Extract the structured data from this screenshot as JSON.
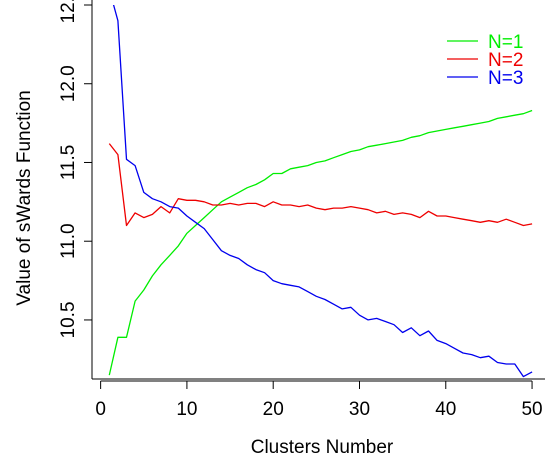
{
  "chart_data": {
    "type": "line",
    "title": "",
    "xlabel": "Clusters Number",
    "ylabel": "Value of sWards Function",
    "xlim": [
      -1,
      51.5
    ],
    "ylim": [
      10.125,
      12.5
    ],
    "x_ticks": [
      0,
      10,
      20,
      30,
      40,
      50
    ],
    "x_tick_labels": [
      "0",
      "10",
      "20",
      "30",
      "40",
      "50"
    ],
    "y_ticks": [
      10.5,
      11.0,
      11.5,
      12.0,
      12.5
    ],
    "y_tick_labels": [
      "10.5",
      "11.0",
      "11.5",
      "12.0",
      "12.5"
    ],
    "legend_position": "top-right",
    "grid": false,
    "x": [
      1,
      2,
      3,
      4,
      5,
      6,
      7,
      8,
      9,
      10,
      11,
      12,
      13,
      14,
      15,
      16,
      17,
      18,
      19,
      20,
      21,
      22,
      23,
      24,
      25,
      26,
      27,
      28,
      29,
      30,
      31,
      32,
      33,
      34,
      35,
      36,
      37,
      38,
      39,
      40,
      41,
      42,
      43,
      44,
      45,
      46,
      47,
      48,
      49,
      50
    ],
    "series": [
      {
        "name": "N=1",
        "color": "#00ee00",
        "values": [
          10.15,
          10.39,
          10.39,
          10.62,
          10.69,
          10.78,
          10.85,
          10.91,
          10.97,
          11.05,
          11.1,
          11.15,
          11.2,
          11.25,
          11.28,
          11.31,
          11.34,
          11.36,
          11.39,
          11.43,
          11.43,
          11.46,
          11.47,
          11.48,
          11.5,
          11.51,
          11.53,
          11.55,
          11.57,
          11.58,
          11.6,
          11.61,
          11.62,
          11.63,
          11.64,
          11.66,
          11.67,
          11.69,
          11.7,
          11.71,
          11.72,
          11.73,
          11.74,
          11.75,
          11.76,
          11.78,
          11.79,
          11.8,
          11.81,
          11.83
        ]
      },
      {
        "name": "N=2",
        "color": "#ee0000",
        "values": [
          11.62,
          11.55,
          11.1,
          11.18,
          11.15,
          11.17,
          11.22,
          11.18,
          11.27,
          11.26,
          11.26,
          11.25,
          11.23,
          11.23,
          11.24,
          11.23,
          11.24,
          11.24,
          11.22,
          11.25,
          11.23,
          11.23,
          11.22,
          11.23,
          11.21,
          11.2,
          11.21,
          11.21,
          11.22,
          11.21,
          11.2,
          11.18,
          11.19,
          11.17,
          11.18,
          11.17,
          11.15,
          11.19,
          11.16,
          11.16,
          11.15,
          11.14,
          11.13,
          11.12,
          11.13,
          11.12,
          11.14,
          11.12,
          11.1,
          11.11
        ]
      },
      {
        "name": "N=3",
        "color": "#0000ee",
        "values": [
          12.6,
          12.4,
          11.52,
          11.48,
          11.31,
          11.27,
          11.25,
          11.22,
          11.21,
          11.16,
          11.12,
          11.08,
          11.01,
          10.94,
          10.91,
          10.89,
          10.85,
          10.82,
          10.8,
          10.75,
          10.73,
          10.72,
          10.71,
          10.68,
          10.65,
          10.63,
          10.6,
          10.57,
          10.58,
          10.53,
          10.5,
          10.51,
          10.49,
          10.47,
          10.42,
          10.45,
          10.4,
          10.43,
          10.37,
          10.35,
          10.32,
          10.29,
          10.28,
          10.26,
          10.27,
          10.23,
          10.22,
          10.22,
          10.14,
          10.17
        ]
      }
    ]
  }
}
